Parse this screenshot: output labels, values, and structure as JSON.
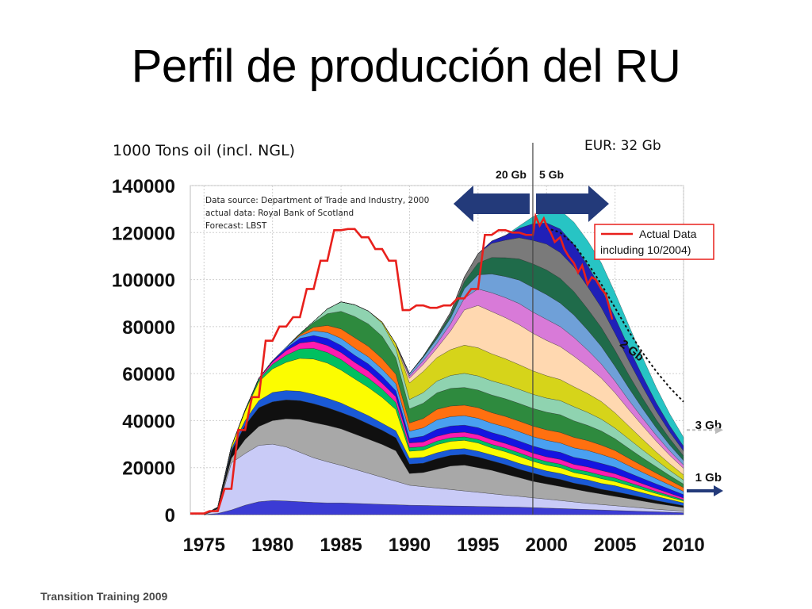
{
  "slide": {
    "title": "Perfil de producción del RU",
    "footer": "Transition Training 2009"
  },
  "chart_data": {
    "type": "area",
    "stacked": true,
    "unit_label": "1000 Tons oil (incl. NGL)",
    "eur_label": "EUR: 32 Gb",
    "source_note": [
      "Data source: Department of Trade and Industry, 2000",
      "actual data: Royal Bank of Scotland",
      "Forecast: LBST"
    ],
    "xlim": [
      1974,
      2010
    ],
    "ylim": [
      0,
      140000
    ],
    "x_ticks": [
      1975,
      1980,
      1985,
      1990,
      1995,
      2000,
      2005,
      2010
    ],
    "y_ticks": [
      0,
      20000,
      40000,
      60000,
      80000,
      100000,
      120000,
      140000
    ],
    "grid": true,
    "divider_year": 1999,
    "arrow_left_label": "20 Gb",
    "arrow_right_label": "5 Gb",
    "remaining_labels": [
      {
        "text": "2 Gb",
        "year": 2005.3,
        "value": 72000
      },
      {
        "text": "3 Gb",
        "year": 2012,
        "value": 36000
      },
      {
        "text": "1 Gb",
        "year": 2012,
        "value": 15000
      }
    ],
    "legend": [
      {
        "name": "Actual Data including 10/2004)",
        "color": "#e8201c"
      }
    ],
    "years": [
      1975,
      1976,
      1977,
      1978,
      1979,
      1980,
      1981,
      1982,
      1983,
      1984,
      1985,
      1986,
      1987,
      1988,
      1989,
      1990,
      1991,
      1992,
      1993,
      1994,
      1995,
      1996,
      1997,
      1998,
      1999,
      2000,
      2001,
      2002,
      2003,
      2004,
      2005,
      2006,
      2007,
      2008,
      2009,
      2010
    ],
    "fields": [
      {
        "color": "#3b3bd4",
        "values": [
          0,
          500,
          2000,
          4000,
          5500,
          6000,
          5800,
          5500,
          5200,
          5000,
          5000,
          4800,
          4600,
          4400,
          4200,
          4000,
          3900,
          3800,
          3700,
          3600,
          3500,
          3400,
          3300,
          3200,
          3000,
          2800,
          2600,
          2400,
          2200,
          2000,
          1800,
          1600,
          1400,
          1200,
          1000,
          800
        ]
      },
      {
        "color": "#c9cbf7",
        "values": [
          0,
          1500,
          20000,
          22000,
          24000,
          24000,
          23000,
          21000,
          19000,
          17500,
          16000,
          14500,
          13000,
          11500,
          10000,
          8500,
          8000,
          7500,
          7000,
          6500,
          6000,
          5500,
          5000,
          4600,
          4200,
          3800,
          3400,
          3000,
          2600,
          2300,
          2000,
          1700,
          1400,
          1100,
          900,
          700
        ]
      },
      {
        "color": "#a8a8a8",
        "values": [
          0,
          500,
          2000,
          6000,
          8000,
          10000,
          12000,
          14000,
          15000,
          15500,
          15500,
          15000,
          14500,
          14000,
          13000,
          5000,
          6000,
          8000,
          10000,
          11000,
          10500,
          10000,
          9000,
          8000,
          7000,
          6500,
          6000,
          5500,
          5000,
          4500,
          4000,
          3500,
          3000,
          2500,
          2000,
          1500
        ]
      },
      {
        "color": "#101010",
        "values": [
          0,
          500,
          3000,
          6000,
          8000,
          8000,
          8000,
          8000,
          8000,
          7500,
          7000,
          7000,
          6500,
          6000,
          5500,
          4000,
          4000,
          4500,
          4500,
          4500,
          4500,
          4000,
          4000,
          3500,
          3500,
          3000,
          3000,
          2500,
          2500,
          2000,
          2000,
          1800,
          1500,
          1200,
          1000,
          800
        ]
      },
      {
        "color": "#1a5ad6",
        "values": [
          0,
          200,
          1000,
          2000,
          3000,
          4000,
          4000,
          4000,
          4000,
          4000,
          4000,
          3500,
          3500,
          3000,
          3000,
          2500,
          2500,
          2500,
          2500,
          2500,
          2500,
          2500,
          2500,
          2500,
          2500,
          2500,
          2500,
          2500,
          2500,
          2500,
          2500,
          2200,
          2000,
          1800,
          1500,
          1200
        ]
      },
      {
        "color": "#fcfc00",
        "values": [
          0,
          0,
          1000,
          4000,
          8000,
          10000,
          12000,
          14000,
          15000,
          15000,
          14000,
          13000,
          12000,
          11000,
          9000,
          3000,
          3000,
          3500,
          3500,
          3500,
          3500,
          3000,
          3000,
          3000,
          2500,
          2500,
          2500,
          2000,
          2000,
          2000,
          1800,
          1600,
          1400,
          1200,
          1000,
          800
        ]
      },
      {
        "color": "#00c060",
        "values": [
          0,
          0,
          0,
          500,
          1000,
          2000,
          3000,
          4000,
          4500,
          4500,
          4500,
          4000,
          4000,
          3500,
          3000,
          1500,
          1500,
          1500,
          1500,
          1500,
          1500,
          1500,
          1500,
          1500,
          1500,
          1500,
          1500,
          1500,
          1500,
          1500,
          1500,
          1300,
          1100,
          900,
          700,
          500
        ]
      },
      {
        "color": "#ff1ab0",
        "values": [
          0,
          0,
          0,
          0,
          500,
          1000,
          2000,
          2500,
          3000,
          3000,
          3000,
          3000,
          3000,
          2500,
          2500,
          2000,
          2000,
          2000,
          2000,
          2000,
          2000,
          2000,
          2000,
          2000,
          2000,
          2000,
          2000,
          2000,
          2000,
          2000,
          1800,
          1600,
          1400,
          1200,
          1000,
          800
        ]
      },
      {
        "color": "#1414e0",
        "values": [
          0,
          0,
          0,
          0,
          0,
          500,
          1000,
          2000,
          2500,
          3000,
          3000,
          3000,
          3000,
          3000,
          2500,
          2000,
          2500,
          3000,
          3000,
          3000,
          3000,
          3000,
          3000,
          3000,
          3000,
          3000,
          3000,
          3000,
          3000,
          3000,
          2800,
          2500,
          2200,
          2000,
          1700,
          1400
        ]
      },
      {
        "color": "#4aa0f0",
        "values": [
          0,
          0,
          0,
          0,
          0,
          0,
          500,
          1000,
          2000,
          2500,
          3000,
          3000,
          3000,
          3000,
          3000,
          3000,
          3500,
          4000,
          4000,
          4000,
          4000,
          4000,
          4000,
          4000,
          4000,
          4000,
          4000,
          4000,
          4000,
          3800,
          3500,
          3000,
          2600,
          2200,
          1800,
          1400
        ]
      },
      {
        "color": "#ff7010",
        "values": [
          0,
          0,
          0,
          0,
          0,
          0,
          0,
          500,
          1500,
          3000,
          4000,
          4500,
          4500,
          4500,
          4000,
          3500,
          4000,
          4500,
          4500,
          4500,
          4500,
          4500,
          4500,
          4500,
          4500,
          4500,
          4500,
          4500,
          4200,
          4000,
          3600,
          3200,
          2800,
          2400,
          2000,
          1600
        ]
      },
      {
        "color": "#2e8a3e",
        "values": [
          0,
          0,
          0,
          0,
          0,
          0,
          0,
          500,
          2000,
          5000,
          7500,
          9000,
          9500,
          9500,
          7000,
          6000,
          6500,
          7000,
          7500,
          7500,
          7500,
          7500,
          7500,
          7500,
          7500,
          7500,
          7500,
          7000,
          6500,
          6000,
          5000,
          4200,
          3400,
          2700,
          2000,
          1500
        ]
      },
      {
        "color": "#8fd3b0",
        "values": [
          0,
          0,
          0,
          0,
          0,
          0,
          0,
          0,
          500,
          2000,
          4000,
          5000,
          5500,
          5500,
          4000,
          4000,
          4500,
          5000,
          5500,
          6000,
          6000,
          6000,
          6000,
          6000,
          6000,
          6000,
          6000,
          6000,
          5500,
          5000,
          4500,
          4000,
          3400,
          2800,
          2200,
          1700
        ]
      },
      {
        "color": "#d6d41a",
        "values": [
          0,
          0,
          0,
          0,
          0,
          0,
          0,
          0,
          0,
          0,
          0,
          0,
          0,
          500,
          2000,
          7000,
          9000,
          10000,
          11000,
          12000,
          12000,
          11500,
          11000,
          10500,
          10000,
          9500,
          9000,
          8500,
          8000,
          7500,
          6500,
          5500,
          4500,
          3500,
          2800,
          2200
        ]
      },
      {
        "color": "#ffd8b0",
        "values": [
          0,
          0,
          0,
          0,
          0,
          0,
          0,
          0,
          0,
          0,
          0,
          0,
          0,
          0,
          0,
          2000,
          3000,
          4000,
          8000,
          15000,
          18000,
          18000,
          17500,
          17000,
          16000,
          15000,
          14000,
          13000,
          11500,
          10000,
          8500,
          7000,
          5800,
          4600,
          3600,
          2800
        ]
      },
      {
        "color": "#d87ad8",
        "values": [
          0,
          0,
          0,
          0,
          0,
          0,
          0,
          0,
          0,
          0,
          0,
          0,
          0,
          0,
          0,
          1000,
          1500,
          2000,
          3000,
          5000,
          7000,
          8000,
          8500,
          9000,
          9000,
          9000,
          8500,
          8000,
          7000,
          6000,
          5000,
          4000,
          3200,
          2500,
          1900,
          1400
        ]
      },
      {
        "color": "#6fa0d8",
        "values": [
          0,
          0,
          0,
          0,
          0,
          0,
          0,
          0,
          0,
          0,
          0,
          0,
          0,
          0,
          0,
          1000,
          1500,
          2000,
          2500,
          4000,
          6000,
          8000,
          9000,
          10000,
          10500,
          10500,
          10000,
          9500,
          8500,
          7500,
          6300,
          5200,
          4100,
          3200,
          2500,
          1900
        ]
      },
      {
        "color": "#1f6b4a",
        "values": [
          0,
          0,
          0,
          0,
          0,
          0,
          0,
          0,
          0,
          0,
          0,
          0,
          0,
          0,
          0,
          0,
          500,
          1000,
          1500,
          3000,
          5000,
          7000,
          8000,
          9000,
          10000,
          10500,
          10500,
          10000,
          9000,
          8000,
          6800,
          5600,
          4500,
          3500,
          2700,
          2000
        ]
      },
      {
        "color": "#7a7a7a",
        "values": [
          0,
          0,
          0,
          0,
          0,
          0,
          0,
          0,
          0,
          0,
          0,
          0,
          0,
          0,
          0,
          0,
          0,
          500,
          1000,
          2000,
          4000,
          6000,
          7500,
          9000,
          10000,
          11000,
          11000,
          10500,
          9500,
          8500,
          7200,
          6000,
          4800,
          3700,
          2800,
          2100
        ]
      },
      {
        "color": "#2020b8",
        "values": [
          0,
          0,
          0,
          0,
          0,
          0,
          0,
          0,
          0,
          0,
          0,
          0,
          0,
          0,
          0,
          0,
          0,
          0,
          0,
          0,
          0,
          1000,
          2000,
          4000,
          7000,
          9000,
          10000,
          9500,
          9000,
          8000,
          6800,
          5600,
          4500,
          3500,
          2700,
          2000
        ]
      },
      {
        "color": "#27c4c4",
        "values": [
          0,
          0,
          0,
          0,
          0,
          0,
          0,
          0,
          0,
          0,
          0,
          0,
          0,
          0,
          0,
          0,
          0,
          0,
          0,
          0,
          0,
          0,
          0,
          1000,
          3000,
          5000,
          8000,
          9500,
          10500,
          11000,
          10500,
          9500,
          8000,
          6500,
          5000,
          3800
        ]
      }
    ],
    "actual_series": {
      "years": [
        1974,
        1975,
        1975.4,
        1976,
        1976.5,
        1977,
        1977.5,
        1978,
        1978.5,
        1979,
        1979.5,
        1980,
        1980.5,
        1981,
        1981.5,
        1982,
        1982.5,
        1983,
        1983.5,
        1984,
        1984.5,
        1985,
        1985.5,
        1986,
        1986.5,
        1987,
        1987.5,
        1988,
        1988.5,
        1989,
        1989.5,
        1990,
        1990.5,
        1991,
        1991.5,
        1992,
        1992.5,
        1993,
        1993.5,
        1994,
        1994.5,
        1995,
        1995.5,
        1996,
        1996.5,
        1997,
        1997.5,
        1998,
        1998.5,
        1999,
        1999.2,
        1999.5,
        1999.8,
        2000,
        2000.3,
        2000.6,
        2001,
        2001.3,
        2001.6,
        2002,
        2002.3,
        2002.6,
        2003,
        2003.3,
        2003.6,
        2004,
        2004.3,
        2004.5,
        2004.8
      ],
      "values": [
        500,
        500,
        1500,
        1500,
        11000,
        11000,
        36000,
        36000,
        50000,
        50000,
        74000,
        74000,
        80000,
        80000,
        84000,
        84000,
        96000,
        96000,
        108000,
        108000,
        121000,
        121000,
        121500,
        121500,
        118000,
        118000,
        113000,
        113000,
        108000,
        108000,
        87000,
        87000,
        89000,
        89000,
        88000,
        88000,
        89000,
        89000,
        92000,
        92000,
        96000,
        96000,
        119000,
        119000,
        121000,
        121000,
        120000,
        120000,
        119000,
        119000,
        127000,
        123000,
        126000,
        123000,
        120000,
        116000,
        118000,
        113000,
        110000,
        107000,
        103000,
        106000,
        98000,
        101000,
        100000,
        96000,
        94000,
        90000,
        83000
      ]
    },
    "forecast_series": {
      "years": [
        2000,
        2001,
        2002,
        2003,
        2004,
        2005,
        2006,
        2007,
        2008,
        2009,
        2010
      ],
      "values": [
        122000,
        120000,
        115000,
        107000,
        98000,
        88000,
        78000,
        69000,
        61000,
        54000,
        48000
      ]
    }
  }
}
